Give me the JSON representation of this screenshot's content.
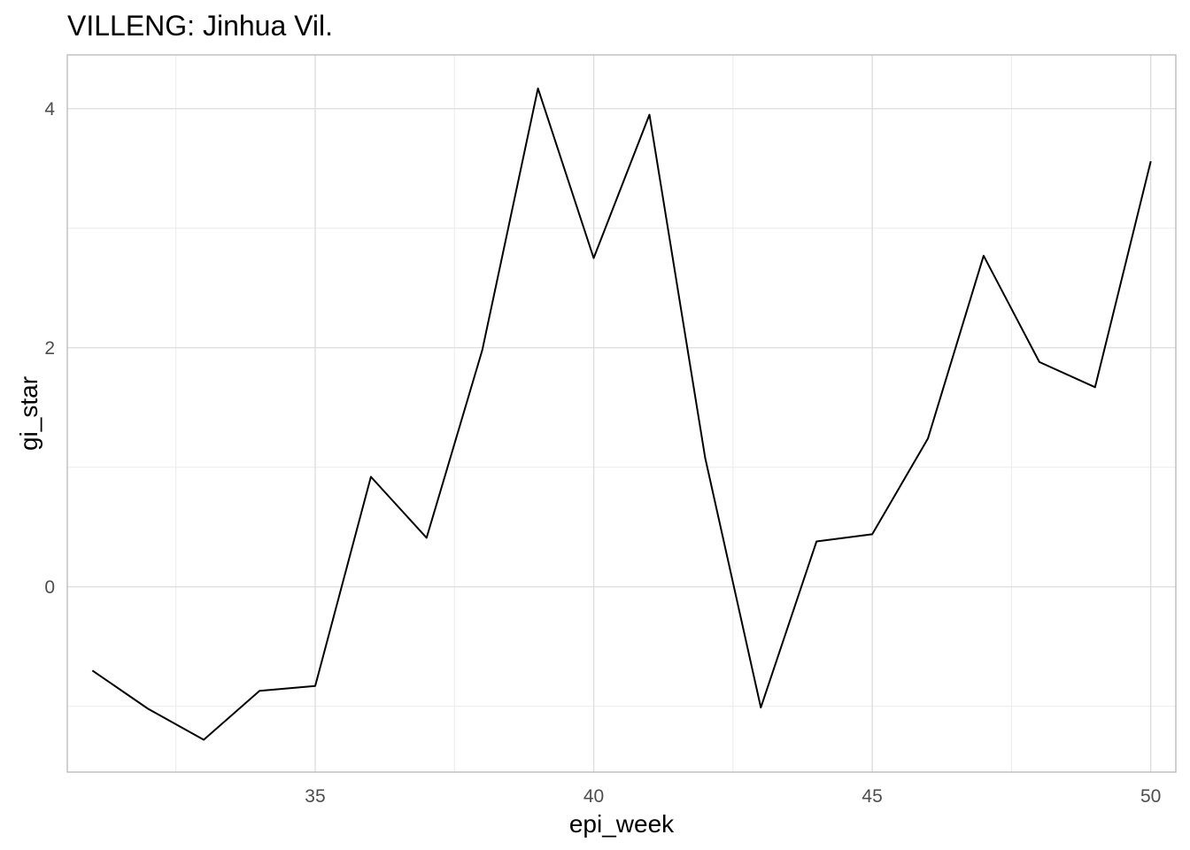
{
  "chart_data": {
    "type": "line",
    "title": "VILLENG: Jinhua Vil.",
    "xlabel": "epi_week",
    "ylabel": "gi_star",
    "xlim": [
      30.55,
      50.45
    ],
    "ylim": [
      -1.55,
      4.45
    ],
    "x_ticks": [
      35,
      40,
      45,
      50
    ],
    "x_minor_ticks": [
      32.5,
      37.5,
      42.5,
      47.5
    ],
    "y_ticks": [
      0,
      2,
      4
    ],
    "y_minor_ticks": [
      -1,
      1,
      3
    ],
    "grid": true,
    "series": [
      {
        "color": "#000000",
        "x": [
          31,
          32,
          33,
          34,
          35,
          36,
          37,
          38,
          39,
          40,
          41,
          42,
          43,
          44,
          45,
          46,
          47,
          48,
          49,
          50
        ],
        "y": [
          -0.7,
          -1.02,
          -1.28,
          -0.87,
          -0.83,
          0.92,
          0.41,
          1.98,
          4.17,
          2.75,
          3.95,
          1.08,
          -1.01,
          0.38,
          0.44,
          1.24,
          2.77,
          1.88,
          1.67,
          3.56
        ]
      }
    ]
  }
}
